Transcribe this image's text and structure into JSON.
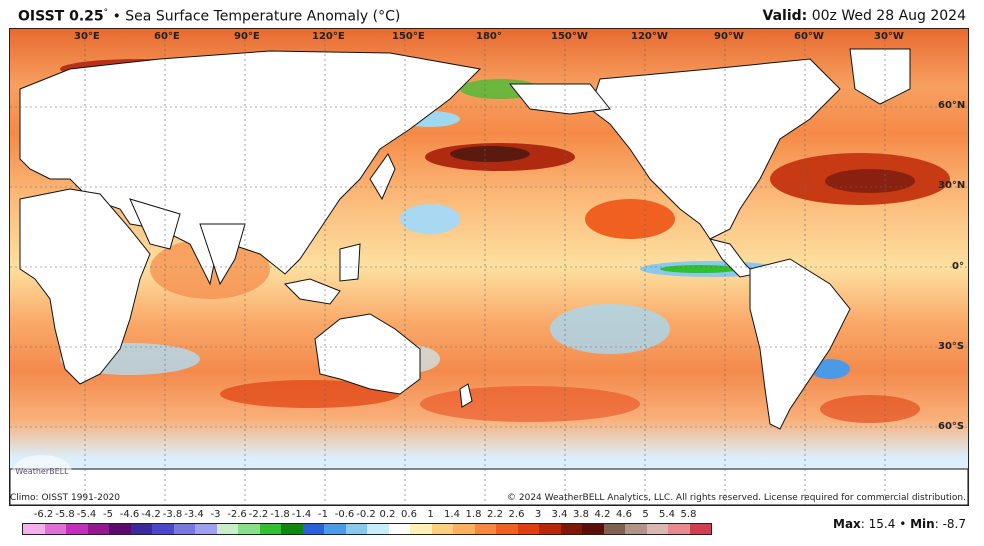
{
  "header": {
    "product": "OISST 0.25",
    "degree": "°",
    "bullet": "•",
    "description": "Sea Surface Temperature Anomaly (°C)",
    "valid_label": "Valid:",
    "valid_value": "00z Wed 28 Aug 2024"
  },
  "map": {
    "longitude_labels": [
      "30°E",
      "60°E",
      "90°E",
      "120°E",
      "150°E",
      "180°",
      "150°W",
      "120°W",
      "90°W",
      "60°W",
      "30°W"
    ],
    "latitude_labels": [
      "60°N",
      "30°N",
      "0°",
      "30°S",
      "60°S"
    ],
    "watermark": "WeatherBELL"
  },
  "footer": {
    "climo": "Climo: OISST 1991-2020",
    "copyright": "© 2024 WeatherBELL Analytics, LLC. All rights reserved. License required for commercial distribution.",
    "max_label": "Max",
    "max_value": "15.4",
    "min_label": "Min",
    "min_value": "-8.7"
  },
  "legend": {
    "ticks": [
      "-6.2",
      "-5.8",
      "-5.4",
      "-5",
      "-4.6",
      "-4.2",
      "-3.8",
      "-3.4",
      "-3",
      "-2.6",
      "-2.2",
      "-1.8",
      "-1.4",
      "-1",
      "-0.6",
      "-0.2",
      "0.2",
      "0.6",
      "1",
      "1.4",
      "1.8",
      "2.2",
      "2.6",
      "3",
      "3.4",
      "3.8",
      "4.2",
      "4.6",
      "5",
      "5.4",
      "5.8"
    ],
    "colors": [
      "#f5b0ec",
      "#e070d8",
      "#c030b8",
      "#901890",
      "#5a0a6a",
      "#3a2a9a",
      "#4848c8",
      "#7878e0",
      "#a0a0ee",
      "#c8f0c8",
      "#88e088",
      "#30c030",
      "#108810",
      "#2a60d8",
      "#4a9ae8",
      "#8ac8f0",
      "#c8ecfa",
      "#ffffff",
      "#fff0b8",
      "#fdd080",
      "#fdb060",
      "#f88840",
      "#f06020",
      "#e04010",
      "#b82808",
      "#801808",
      "#5a1008",
      "#806050",
      "#b09488",
      "#d8b8b0",
      "#e88a90",
      "#d04050"
    ]
  }
}
